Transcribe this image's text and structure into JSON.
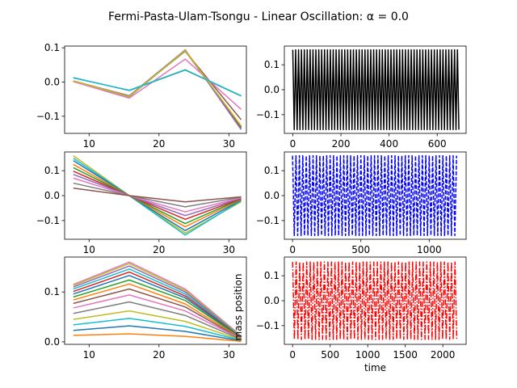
{
  "figure": {
    "title": "Fermi-Pasta-Ulam-Tsongu - Linear Oscillation: α = 0.0"
  },
  "chart_data": [
    {
      "id": "p1",
      "type": "line",
      "xlim": [
        6.5,
        32.5
      ],
      "ylim": [
        -0.15,
        0.105
      ],
      "xticks": [
        10,
        20,
        30
      ],
      "yticks": [
        -0.1,
        0.0,
        0.1
      ],
      "ytick_labels": [
        "−0.1",
        "0.0",
        "0.1"
      ],
      "x": [
        7.75,
        15.75,
        23.75,
        31.75
      ],
      "series": [
        {
          "color": "#1f77b4",
          "values": [
            0.003,
            -0.043,
            0.092,
            -0.135
          ]
        },
        {
          "color": "#ff7f0e",
          "values": [
            0.003,
            -0.042,
            0.093,
            -0.133
          ]
        },
        {
          "color": "#2ca02c",
          "values": [
            0.003,
            -0.042,
            0.092,
            -0.132
          ]
        },
        {
          "color": "#d62728",
          "values": [
            0.003,
            -0.041,
            0.091,
            -0.13
          ]
        },
        {
          "color": "#9467bd",
          "values": [
            0.003,
            -0.04,
            0.094,
            -0.139
          ]
        },
        {
          "color": "#8c564b",
          "values": [
            0.002,
            -0.041,
            0.09,
            -0.11
          ]
        },
        {
          "color": "#e377c2",
          "values": [
            0.001,
            -0.047,
            0.067,
            -0.08
          ]
        },
        {
          "color": "#7f7f7f",
          "values": [
            0.013,
            -0.025,
            0.035,
            -0.041
          ]
        },
        {
          "color": "#bcbd22",
          "values": [
            0.003,
            -0.042,
            0.092,
            -0.128
          ]
        },
        {
          "color": "#17becf",
          "values": [
            0.012,
            -0.024,
            0.036,
            -0.04
          ]
        }
      ]
    },
    {
      "id": "p2",
      "type": "line",
      "xlim": [
        -35,
        720
      ],
      "ylim": [
        -0.175,
        0.175
      ],
      "xticks": [
        0,
        200,
        400,
        600
      ],
      "yticks": [
        -0.1,
        0.0,
        0.1
      ],
      "ytick_labels": [
        "−0.1",
        "0.0",
        "0.1"
      ],
      "series": [
        {
          "color": "#000000",
          "style": "solid",
          "amplitude": 0.16,
          "period": 12.0,
          "x_start": 0,
          "x_end": 690
        }
      ]
    },
    {
      "id": "p3",
      "type": "line",
      "xlim": [
        6.5,
        32.5
      ],
      "ylim": [
        -0.175,
        0.175
      ],
      "xticks": [
        10,
        20,
        30
      ],
      "yticks": [
        -0.1,
        0.0,
        0.1
      ],
      "ytick_labels": [
        "−0.1",
        "0.0",
        "0.1"
      ],
      "x": [
        7.75,
        15.75,
        23.75,
        31.75
      ],
      "series": [
        {
          "color": "#bcbd22",
          "values": [
            0.16,
            0.0,
            -0.15,
            -0.025
          ]
        },
        {
          "color": "#17becf",
          "values": [
            0.15,
            0.0,
            -0.158,
            -0.02
          ]
        },
        {
          "color": "#1f77b4",
          "values": [
            0.14,
            0.0,
            -0.14,
            -0.018
          ]
        },
        {
          "color": "#ff7f0e",
          "values": [
            0.125,
            0.0,
            -0.125,
            -0.015
          ]
        },
        {
          "color": "#2ca02c",
          "values": [
            0.112,
            0.0,
            -0.112,
            -0.013
          ]
        },
        {
          "color": "#d62728",
          "values": [
            0.098,
            0.0,
            -0.095,
            -0.012
          ]
        },
        {
          "color": "#9467bd",
          "values": [
            0.085,
            0.0,
            -0.08,
            -0.01
          ]
        },
        {
          "color": "#e377c2",
          "values": [
            0.07,
            0.0,
            -0.065,
            -0.008
          ]
        },
        {
          "color": "#7f7f7f",
          "values": [
            0.05,
            0.0,
            -0.045,
            -0.006
          ]
        },
        {
          "color": "#8c564b",
          "values": [
            0.03,
            0.0,
            -0.025,
            -0.005
          ]
        }
      ]
    },
    {
      "id": "p4",
      "type": "line",
      "xlim": [
        -60,
        1270
      ],
      "ylim": [
        -0.175,
        0.175
      ],
      "xticks": [
        0,
        500,
        1000
      ],
      "yticks": [
        -0.1,
        0.0,
        0.1
      ],
      "ytick_labels": [
        "−0.1",
        "0.0",
        "0.1"
      ],
      "series": [
        {
          "color": "#0000ff",
          "style": "dashed",
          "amplitude": 0.16,
          "period": 25.0,
          "x_start": 0,
          "x_end": 1210
        }
      ]
    },
    {
      "id": "p5",
      "type": "line",
      "xlim": [
        6.5,
        32.5
      ],
      "ylim": [
        -0.005,
        0.17
      ],
      "xticks": [
        10,
        20,
        30
      ],
      "yticks": [
        0.0,
        0.1
      ],
      "ytick_labels": [
        "0.0",
        "0.1"
      ],
      "x": [
        7.75,
        15.75,
        23.75,
        31.75
      ],
      "series": [
        {
          "color": "#e377c2",
          "values": [
            0.115,
            0.16,
            0.106,
            0.012
          ]
        },
        {
          "color": "#bcbd22",
          "values": [
            0.113,
            0.157,
            0.103,
            0.011
          ]
        },
        {
          "color": "#9467bd",
          "values": [
            0.11,
            0.152,
            0.1,
            0.01
          ]
        },
        {
          "color": "#17becf",
          "values": [
            0.106,
            0.146,
            0.096,
            0.01
          ]
        },
        {
          "color": "#d62728",
          "values": [
            0.101,
            0.14,
            0.092,
            0.009
          ]
        },
        {
          "color": "#1f77b4",
          "values": [
            0.096,
            0.133,
            0.088,
            0.008
          ]
        },
        {
          "color": "#2ca02c",
          "values": [
            0.09,
            0.124,
            0.083,
            0.008
          ]
        },
        {
          "color": "#ff7f0e",
          "values": [
            0.084,
            0.116,
            0.076,
            0.007
          ]
        },
        {
          "color": "#8c564b",
          "values": [
            0.077,
            0.106,
            0.07,
            0.006
          ]
        },
        {
          "color": "#e377c2",
          "values": [
            0.068,
            0.094,
            0.062,
            0.006
          ]
        },
        {
          "color": "#7f7f7f",
          "values": [
            0.057,
            0.08,
            0.053,
            0.005
          ]
        },
        {
          "color": "#bcbd22",
          "values": [
            0.045,
            0.062,
            0.041,
            0.004
          ]
        },
        {
          "color": "#17becf",
          "values": [
            0.034,
            0.047,
            0.031,
            0.003
          ]
        },
        {
          "color": "#1f77b4",
          "values": [
            0.023,
            0.032,
            0.021,
            0.002
          ]
        },
        {
          "color": "#ff7f0e",
          "values": [
            0.013,
            0.016,
            0.011,
            0.001
          ]
        }
      ]
    },
    {
      "id": "p6",
      "type": "line",
      "xlim": [
        -110,
        2310
      ],
      "ylim": [
        -0.175,
        0.175
      ],
      "xticks": [
        0,
        500,
        1000,
        1500,
        2000
      ],
      "yticks": [
        -0.1,
        0.0,
        0.1
      ],
      "ytick_labels": [
        "−0.1",
        "0.0",
        "0.1"
      ],
      "xlabel": "time",
      "ylabel": "mass position",
      "series": [
        {
          "color": "#ff0000",
          "style": "dashdot",
          "amplitude": 0.155,
          "period": 47.0,
          "x_start": 0,
          "x_end": 2200
        }
      ]
    }
  ]
}
